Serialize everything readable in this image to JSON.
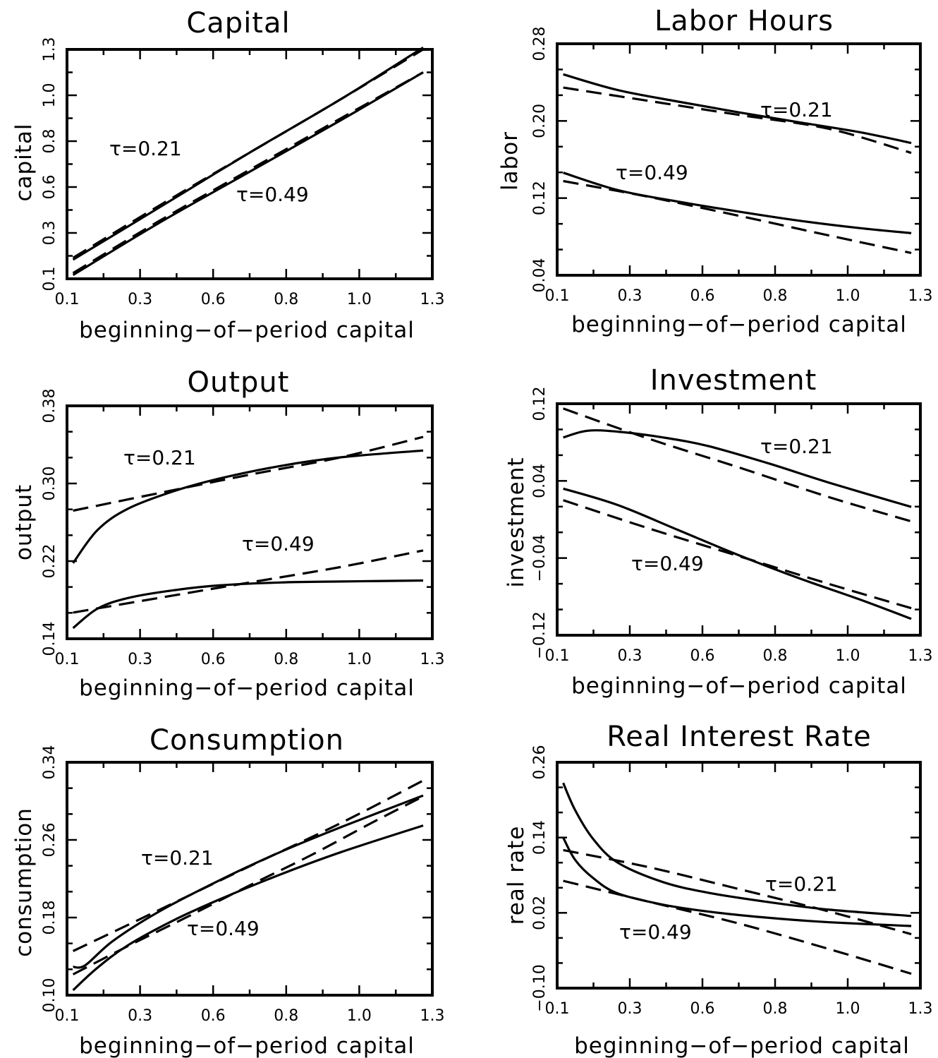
{
  "chart_data": [
    {
      "type": "line",
      "title": "Capital",
      "xlabel": "beginning−of−period capital",
      "ylabel": "capital",
      "xticks": [
        "0.1",
        "0.3",
        "0.6",
        "0.8",
        "1.0",
        "1.3"
      ],
      "yticks": [
        "0.1",
        "0.3",
        "0.6",
        "0.8",
        "1.0",
        "1.3"
      ],
      "xlim": [
        0.1,
        1.3
      ],
      "ylim": [
        0.1,
        1.3
      ],
      "annotations": [
        {
          "text": "τ=0.21"
        },
        {
          "text": "τ=0.49"
        }
      ],
      "series": [
        {
          "style": "solid",
          "x": [
            0.12,
            0.4,
            0.7,
            1.0,
            1.27
          ],
          "y": [
            0.2,
            0.47,
            0.76,
            1.04,
            1.31
          ]
        },
        {
          "style": "dashed",
          "x": [
            0.12,
            0.4,
            0.7,
            1.0,
            1.27
          ],
          "y": [
            0.21,
            0.48,
            0.76,
            1.04,
            1.3
          ]
        },
        {
          "style": "solid",
          "x": [
            0.12,
            0.4,
            0.7,
            1.0,
            1.27
          ],
          "y": [
            0.12,
            0.39,
            0.66,
            0.93,
            1.18
          ]
        },
        {
          "style": "dashed",
          "x": [
            0.12,
            0.4,
            0.7,
            1.0,
            1.27
          ],
          "y": [
            0.13,
            0.4,
            0.67,
            0.94,
            1.18
          ]
        }
      ]
    },
    {
      "type": "line",
      "title": "Labor Hours",
      "xlabel": "beginning−of−period capital",
      "ylabel": "labor",
      "xticks": [
        "0.1",
        "0.3",
        "0.6",
        "0.8",
        "1.0",
        "1.3"
      ],
      "yticks": [
        "0.04",
        "0.12",
        "0.20",
        "0.28"
      ],
      "xlim": [
        0.1,
        1.3
      ],
      "ylim": [
        0.04,
        0.32
      ],
      "annotations": [
        {
          "text": "τ=0.21"
        },
        {
          "text": "τ=0.49"
        }
      ],
      "series": [
        {
          "style": "solid",
          "x": [
            0.12,
            0.3,
            0.5,
            0.7,
            0.9,
            1.1,
            1.27
          ],
          "y": [
            0.283,
            0.264,
            0.25,
            0.237,
            0.225,
            0.213,
            0.2
          ]
        },
        {
          "style": "dashed",
          "x": [
            0.12,
            0.4,
            0.7,
            1.0,
            1.27
          ],
          "y": [
            0.267,
            0.251,
            0.234,
            0.217,
            0.188
          ]
        },
        {
          "style": "solid",
          "x": [
            0.12,
            0.3,
            0.5,
            0.7,
            0.9,
            1.1,
            1.27
          ],
          "y": [
            0.164,
            0.143,
            0.129,
            0.117,
            0.106,
            0.097,
            0.091
          ]
        },
        {
          "style": "dashed",
          "x": [
            0.12,
            0.4,
            0.7,
            1.0,
            1.27
          ],
          "y": [
            0.154,
            0.135,
            0.112,
            0.088,
            0.067
          ]
        }
      ]
    },
    {
      "type": "line",
      "title": "Output",
      "xlabel": "beginning−of−period capital",
      "ylabel": "output",
      "xticks": [
        "0.1",
        "0.3",
        "0.6",
        "0.8",
        "1.0",
        "1.3"
      ],
      "yticks": [
        "0.14",
        "0.22",
        "0.30",
        "0.38"
      ],
      "xlim": [
        0.1,
        1.3
      ],
      "ylim": [
        0.14,
        0.38
      ],
      "annotations": [
        {
          "text": "τ=0.21"
        },
        {
          "text": "τ=0.49"
        }
      ],
      "series": [
        {
          "style": "solid",
          "x": [
            0.12,
            0.2,
            0.3,
            0.45,
            0.6,
            0.8,
            1.0,
            1.27
          ],
          "y": [
            0.218,
            0.252,
            0.274,
            0.292,
            0.305,
            0.318,
            0.327,
            0.334
          ]
        },
        {
          "style": "dashed",
          "x": [
            0.12,
            0.4,
            0.7,
            1.0,
            1.27
          ],
          "y": [
            0.272,
            0.29,
            0.309,
            0.327,
            0.348
          ]
        },
        {
          "style": "solid",
          "x": [
            0.12,
            0.2,
            0.3,
            0.45,
            0.6,
            0.8,
            1.0,
            1.27
          ],
          "y": [
            0.151,
            0.171,
            0.182,
            0.19,
            0.195,
            0.198,
            0.199,
            0.2
          ]
        },
        {
          "style": "dashed",
          "x": [
            0.12,
            0.4,
            0.7,
            1.0,
            1.27
          ],
          "y": [
            0.167,
            0.182,
            0.198,
            0.214,
            0.231
          ]
        }
      ]
    },
    {
      "type": "line",
      "title": "Investment",
      "xlabel": "beginning−of−period capital",
      "ylabel": "investment",
      "xticks": [
        "0.1",
        "0.3",
        "0.6",
        "0.8",
        "1.0",
        "1.3"
      ],
      "yticks": [
        "−0.12",
        "−0.04",
        "0.04",
        "0.12"
      ],
      "xlim": [
        0.1,
        1.3
      ],
      "ylim": [
        -0.12,
        0.12
      ],
      "annotations": [
        {
          "text": "τ=0.21"
        },
        {
          "text": "τ=0.49"
        }
      ],
      "series": [
        {
          "style": "solid",
          "x": [
            0.12,
            0.2,
            0.3,
            0.45,
            0.6,
            0.8,
            1.0,
            1.27
          ],
          "y": [
            0.085,
            0.092,
            0.091,
            0.085,
            0.076,
            0.058,
            0.038,
            0.013
          ]
        },
        {
          "style": "dashed",
          "x": [
            0.12,
            0.4,
            0.7,
            1.0,
            1.27
          ],
          "y": [
            0.115,
            0.084,
            0.054,
            0.023,
            -0.002
          ]
        },
        {
          "style": "solid",
          "x": [
            0.12,
            0.3,
            0.5,
            0.7,
            0.9,
            1.1,
            1.27
          ],
          "y": [
            0.032,
            0.015,
            -0.011,
            -0.037,
            -0.061,
            -0.083,
            -0.103
          ]
        },
        {
          "style": "dashed",
          "x": [
            0.12,
            0.4,
            0.7,
            1.0,
            1.27
          ],
          "y": [
            0.02,
            -0.009,
            -0.038,
            -0.067,
            -0.092
          ]
        }
      ]
    },
    {
      "type": "line",
      "title": "Consumption",
      "xlabel": "beginning−of−period capital",
      "ylabel": "consumption",
      "xticks": [
        "0.1",
        "0.3",
        "0.6",
        "0.8",
        "1.0",
        "1.3"
      ],
      "yticks": [
        "0.10",
        "0.18",
        "0.26",
        "0.34"
      ],
      "xlim": [
        0.1,
        1.3
      ],
      "ylim": [
        0.1,
        0.38
      ],
      "annotations": [
        {
          "text": "τ=0.21"
        },
        {
          "text": "τ=0.49"
        }
      ],
      "series": [
        {
          "style": "solid",
          "x": [
            0.12,
            0.16,
            0.25,
            0.4,
            0.6,
            0.8,
            1.0,
            1.27
          ],
          "y": [
            0.134,
            0.136,
            0.165,
            0.2,
            0.238,
            0.272,
            0.302,
            0.34
          ]
        },
        {
          "style": "dashed",
          "x": [
            0.12,
            0.4,
            0.7,
            1.0,
            1.27
          ],
          "y": [
            0.153,
            0.202,
            0.255,
            0.307,
            0.358
          ]
        },
        {
          "style": "solid",
          "x": [
            0.12,
            0.2,
            0.3,
            0.45,
            0.6,
            0.8,
            1.0,
            1.27
          ],
          "y": [
            0.106,
            0.133,
            0.16,
            0.19,
            0.215,
            0.245,
            0.272,
            0.304
          ]
        },
        {
          "style": "dashed",
          "x": [
            0.12,
            0.3,
            0.5,
            0.7,
            0.9,
            1.1,
            1.27
          ],
          "y": [
            0.125,
            0.159,
            0.195,
            0.232,
            0.268,
            0.307,
            0.339
          ]
        }
      ]
    },
    {
      "type": "line",
      "title": "Real Interest Rate",
      "xlabel": "beginning−of−period capital",
      "ylabel": "real rate",
      "xticks": [
        "0.1",
        "0.3",
        "0.6",
        "0.8",
        "1.0",
        "1.3"
      ],
      "yticks": [
        "−0.10",
        "0.02",
        "0.14",
        "0.26"
      ],
      "xlim": [
        0.1,
        1.3
      ],
      "ylim": [
        -0.1,
        0.26
      ],
      "annotations": [
        {
          "text": "τ=0.21"
        },
        {
          "text": "τ=0.49"
        }
      ],
      "series": [
        {
          "style": "solid",
          "x": [
            0.12,
            0.16,
            0.22,
            0.3,
            0.45,
            0.6,
            0.8,
            1.0,
            1.27
          ],
          "y": [
            0.227,
            0.183,
            0.137,
            0.1,
            0.069,
            0.052,
            0.037,
            0.025,
            0.015
          ]
        },
        {
          "style": "dashed",
          "x": [
            0.12,
            0.4,
            0.7,
            1.0,
            1.27
          ],
          "y": [
            0.12,
            0.093,
            0.058,
            0.022,
            -0.014
          ]
        },
        {
          "style": "solid",
          "x": [
            0.12,
            0.16,
            0.22,
            0.3,
            0.45,
            0.6,
            0.8,
            1.0,
            1.27
          ],
          "y": [
            0.14,
            0.104,
            0.075,
            0.051,
            0.033,
            0.022,
            0.012,
            0.005,
            -0.001
          ]
        },
        {
          "style": "dashed",
          "x": [
            0.12,
            0.4,
            0.7,
            1.0,
            1.27
          ],
          "y": [
            0.071,
            0.038,
            0.003,
            -0.038,
            -0.077
          ]
        }
      ]
    }
  ]
}
